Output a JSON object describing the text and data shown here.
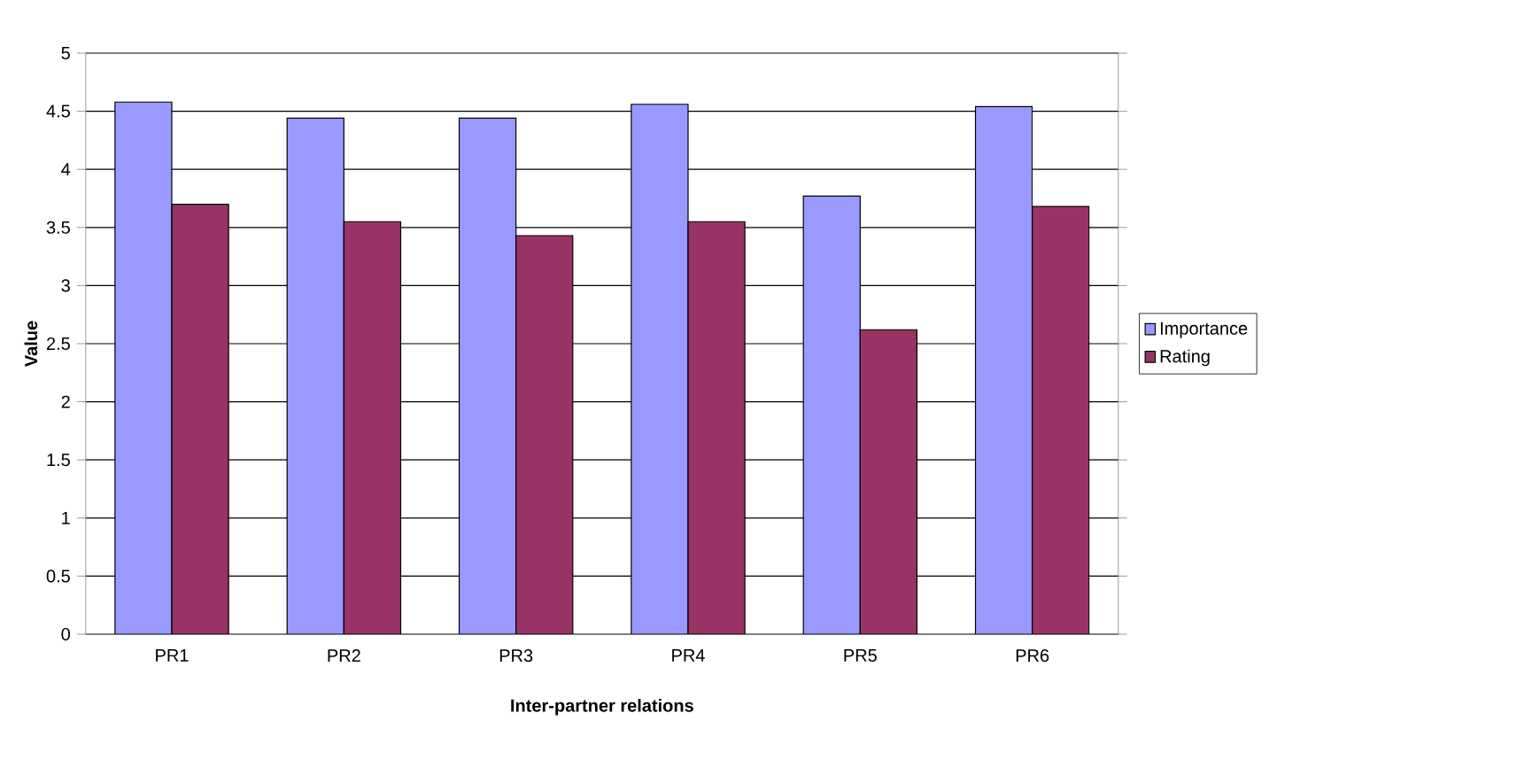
{
  "chart_data": {
    "type": "bar",
    "xlabel": "Inter-partner relations",
    "ylabel": "Value",
    "categories": [
      "PR1",
      "PR2",
      "PR3",
      "PR4",
      "PR5",
      "PR6"
    ],
    "series": [
      {
        "name": "Importance",
        "color": "#9999ff",
        "values": [
          4.58,
          4.44,
          4.44,
          4.56,
          3.77,
          4.54
        ]
      },
      {
        "name": "Rating",
        "color": "#993366",
        "values": [
          3.7,
          3.55,
          3.43,
          3.55,
          2.62,
          3.68
        ]
      }
    ],
    "ylim": [
      0,
      5
    ],
    "yticks": [
      0,
      0.5,
      1,
      1.5,
      2,
      2.5,
      3,
      3.5,
      4,
      4.5,
      5
    ],
    "grid": "y",
    "legend": "right"
  }
}
